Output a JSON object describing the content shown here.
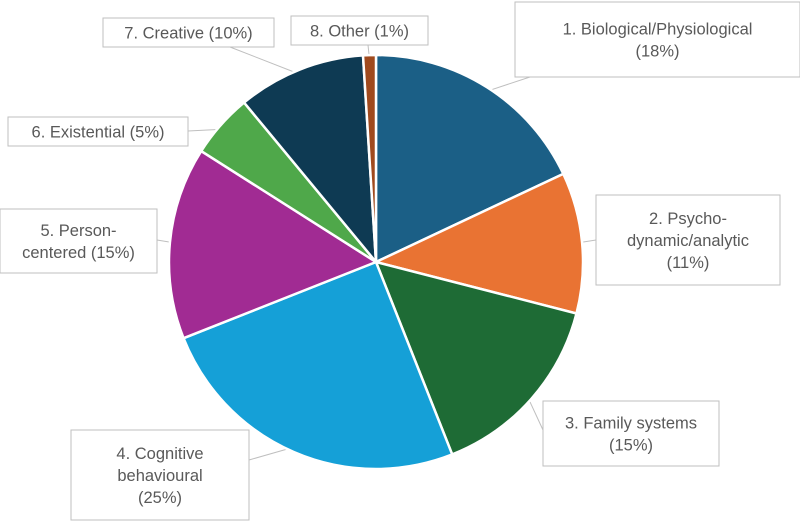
{
  "chart_data": {
    "type": "pie",
    "start_angle_deg": 0,
    "direction": "clockwise",
    "slices": [
      {
        "label_lines": [
          "1. Biological/Physiological",
          "(18%)"
        ],
        "value": 18,
        "color": "#1b5f86"
      },
      {
        "label_lines": [
          "2. Psycho-",
          "dynamic/analytic",
          "(11%)"
        ],
        "value": 11,
        "color": "#e97333"
      },
      {
        "label_lines": [
          "3. Family systems",
          "(15%)"
        ],
        "value": 15,
        "color": "#1e6b35"
      },
      {
        "label_lines": [
          "4. Cognitive",
          "behavioural",
          "(25%)"
        ],
        "value": 25,
        "color": "#15a0d7"
      },
      {
        "label_lines": [
          "5. Person-",
          "centered (15%)"
        ],
        "value": 15,
        "color": "#a12b93"
      },
      {
        "label_lines": [
          "6. Existential (5%)"
        ],
        "value": 5,
        "color": "#4fa84a"
      },
      {
        "label_lines": [
          "7. Creative (10%)"
        ],
        "value": 10,
        "color": "#0e3a53"
      },
      {
        "label_lines": [
          "8. Other (1%)"
        ],
        "value": 1,
        "color": "#a04a1e"
      }
    ]
  }
}
